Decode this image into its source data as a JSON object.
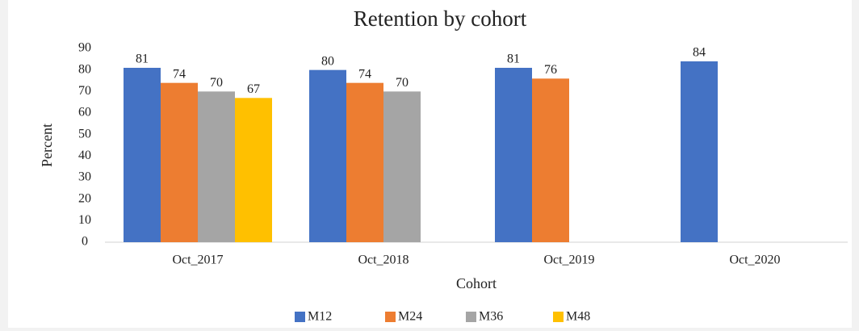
{
  "chart_data": {
    "type": "bar",
    "title": "Retention by cohort",
    "x_label": "Cohort",
    "y_label": "Percent",
    "categories": [
      "Oct_2017",
      "Oct_2018",
      "Oct_2019",
      "Oct_2020"
    ],
    "series": [
      {
        "name": "M12",
        "color": "#4472c4",
        "values": [
          81,
          80,
          81,
          84
        ]
      },
      {
        "name": "M24",
        "color": "#ed7d31",
        "values": [
          74,
          74,
          76,
          null
        ]
      },
      {
        "name": "M36",
        "color": "#a5a5a5",
        "values": [
          70,
          70,
          null,
          null
        ]
      },
      {
        "name": "M48",
        "color": "#ffc000",
        "values": [
          67,
          null,
          null,
          null
        ]
      }
    ],
    "ylim": [
      0,
      90
    ],
    "yticks": [
      0,
      10,
      20,
      30,
      40,
      50,
      60,
      70,
      80,
      90
    ],
    "grid": false,
    "legend": "bottom"
  }
}
